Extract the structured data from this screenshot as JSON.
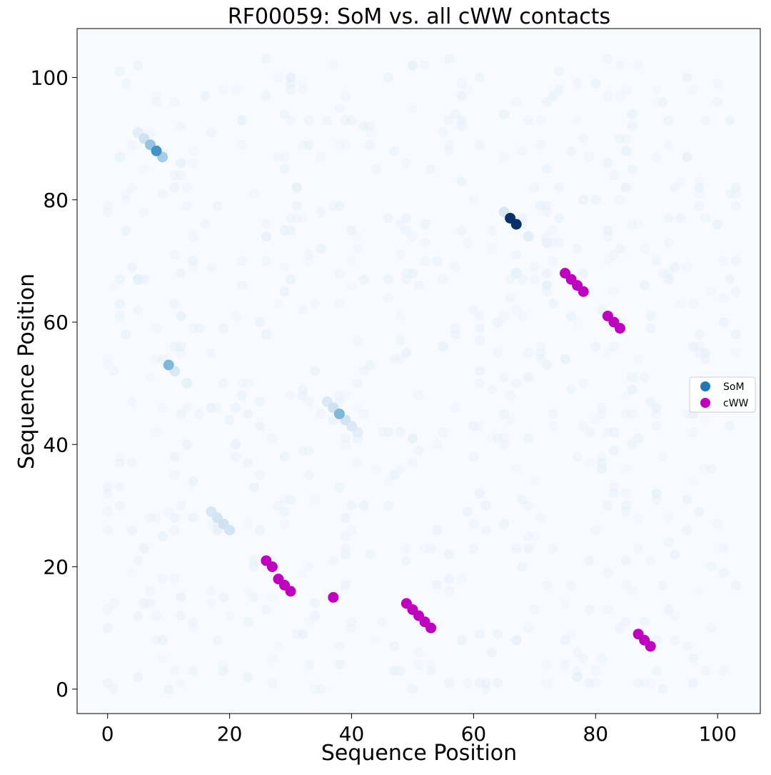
{
  "chart_data": {
    "type": "scatter",
    "title": "RF00059: SoM vs. all cWW contacts",
    "xlabel": "Sequence Position",
    "ylabel": "Sequence Position",
    "xlim": [
      -5,
      107
    ],
    "ylim": [
      108,
      -4
    ],
    "y_inverted": true,
    "xticks": [
      0,
      20,
      40,
      60,
      80,
      100
    ],
    "yticks": [
      0,
      20,
      40,
      60,
      80,
      100
    ],
    "grid": false,
    "legend_position": "center-right",
    "background_color": "#f7fbff",
    "series": [
      {
        "name": "SoM",
        "legend_color": "#1f77b4",
        "colormap": "Blues",
        "points": [
          {
            "x": 20,
            "y": 26,
            "v": 0.18
          },
          {
            "x": 19,
            "y": 27,
            "v": 0.2
          },
          {
            "x": 18,
            "y": 28,
            "v": 0.18
          },
          {
            "x": 17,
            "y": 29,
            "v": 0.16
          },
          {
            "x": 41,
            "y": 42,
            "v": 0.1
          },
          {
            "x": 40,
            "y": 43,
            "v": 0.14
          },
          {
            "x": 39,
            "y": 44,
            "v": 0.18
          },
          {
            "x": 38,
            "y": 45,
            "v": 0.45
          },
          {
            "x": 37,
            "y": 46,
            "v": 0.2
          },
          {
            "x": 36,
            "y": 47,
            "v": 0.14
          },
          {
            "x": 13,
            "y": 50,
            "v": 0.08
          },
          {
            "x": 11,
            "y": 52,
            "v": 0.15
          },
          {
            "x": 10,
            "y": 53,
            "v": 0.45
          },
          {
            "x": 69,
            "y": 74,
            "v": 0.1
          },
          {
            "x": 67,
            "y": 76,
            "v": 1.0
          },
          {
            "x": 66,
            "y": 77,
            "v": 1.0
          },
          {
            "x": 65,
            "y": 78,
            "v": 0.16
          },
          {
            "x": 9,
            "y": 87,
            "v": 0.35
          },
          {
            "x": 8,
            "y": 88,
            "v": 0.62
          },
          {
            "x": 7,
            "y": 89,
            "v": 0.4
          },
          {
            "x": 6,
            "y": 90,
            "v": 0.2
          },
          {
            "x": 5,
            "y": 91,
            "v": 0.1
          },
          {
            "x": 5,
            "y": 67,
            "v": 0.08
          },
          {
            "x": 67,
            "y": 68,
            "v": 0.08
          },
          {
            "x": 72,
            "y": 73,
            "v": 0.07
          },
          {
            "x": 55,
            "y": 56,
            "v": 0.06
          },
          {
            "x": 85,
            "y": 88,
            "v": 0.06
          },
          {
            "x": 2,
            "y": 87,
            "v": 0.05
          },
          {
            "x": 30,
            "y": 67,
            "v": 0.05
          }
        ]
      },
      {
        "name": "cWW",
        "color": "#bf00bf",
        "points": [
          {
            "x": 26,
            "y": 21
          },
          {
            "x": 27,
            "y": 20
          },
          {
            "x": 28,
            "y": 18
          },
          {
            "x": 29,
            "y": 17
          },
          {
            "x": 30,
            "y": 16
          },
          {
            "x": 37,
            "y": 15
          },
          {
            "x": 49,
            "y": 14
          },
          {
            "x": 50,
            "y": 13
          },
          {
            "x": 51,
            "y": 12
          },
          {
            "x": 52,
            "y": 11
          },
          {
            "x": 53,
            "y": 10
          },
          {
            "x": 87,
            "y": 9
          },
          {
            "x": 88,
            "y": 8
          },
          {
            "x": 89,
            "y": 7
          },
          {
            "x": 82,
            "y": 61
          },
          {
            "x": 83,
            "y": 60
          },
          {
            "x": 84,
            "y": 59
          },
          {
            "x": 75,
            "y": 68
          },
          {
            "x": 76,
            "y": 67
          },
          {
            "x": 77,
            "y": 66
          },
          {
            "x": 78,
            "y": 65
          }
        ]
      }
    ]
  }
}
